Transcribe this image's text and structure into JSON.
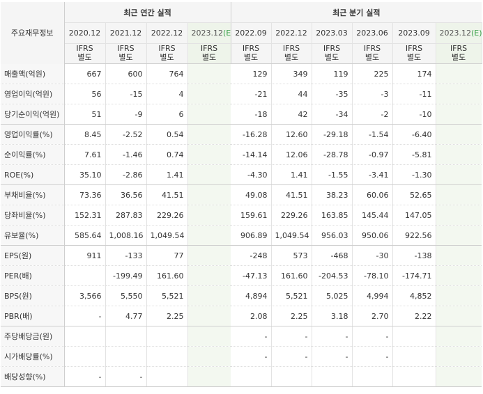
{
  "header": {
    "corner_label": "주요재무정보",
    "annual_title": "최근 연간 실적",
    "quarter_title": "최근 분기 실적",
    "annual_periods": [
      "2020.12",
      "2021.12",
      "2022.12",
      "2023.12"
    ],
    "quarter_periods": [
      "2022.09",
      "2022.12",
      "2023.03",
      "2023.06",
      "2023.09",
      "2023.12"
    ],
    "estimate_mark": "(E)",
    "ifrs_line1": "IFRS",
    "ifrs_line2": "별도"
  },
  "colors": {
    "negative": "#e8141c",
    "ifrs_text": "#f06a1e",
    "estimate_bg": "#eef4ea",
    "estimate_mark": "#3aa14a"
  },
  "rows": [
    {
      "label": "매출액(억원)",
      "values": [
        "667",
        "600",
        "764",
        "",
        "129",
        "349",
        "119",
        "225",
        "174",
        ""
      ]
    },
    {
      "label": "영업이익(억원)",
      "values": [
        "56",
        "-15",
        "4",
        "",
        "-21",
        "44",
        "-35",
        "-3",
        "-11",
        ""
      ]
    },
    {
      "label": "당기순이익(억원)",
      "values": [
        "51",
        "-9",
        "6",
        "",
        "-18",
        "42",
        "-34",
        "-2",
        "-10",
        ""
      ]
    },
    {
      "label": "영업이익률(%)",
      "values": [
        "8.45",
        "-2.52",
        "0.54",
        "",
        "-16.28",
        "12.60",
        "-29.18",
        "-1.54",
        "-6.40",
        ""
      ]
    },
    {
      "label": "순이익률(%)",
      "values": [
        "7.61",
        "-1.46",
        "0.74",
        "",
        "-14.14",
        "12.06",
        "-28.78",
        "-0.97",
        "-5.81",
        ""
      ]
    },
    {
      "label": "ROE(%)",
      "values": [
        "35.10",
        "-2.86",
        "1.41",
        "",
        "-4.30",
        "1.41",
        "-1.55",
        "-3.41",
        "-1.30",
        ""
      ]
    },
    {
      "label": "부채비율(%)",
      "values": [
        "73.36",
        "36.56",
        "41.51",
        "",
        "49.08",
        "41.51",
        "38.23",
        "60.06",
        "52.65",
        ""
      ]
    },
    {
      "label": "당좌비율(%)",
      "values": [
        "152.31",
        "287.83",
        "229.26",
        "",
        "159.61",
        "229.26",
        "163.85",
        "145.44",
        "147.05",
        ""
      ]
    },
    {
      "label": "유보율(%)",
      "values": [
        "585.64",
        "1,008.16",
        "1,049.54",
        "",
        "906.89",
        "1,049.54",
        "956.03",
        "950.06",
        "922.56",
        ""
      ]
    },
    {
      "label": "EPS(원)",
      "values": [
        "911",
        "-133",
        "77",
        "",
        "-248",
        "573",
        "-468",
        "-30",
        "-138",
        ""
      ]
    },
    {
      "label": "PER(배)",
      "values": [
        "",
        "-199.49",
        "161.60",
        "",
        "-47.13",
        "161.60",
        "-204.53",
        "-78.10",
        "-174.71",
        ""
      ]
    },
    {
      "label": "BPS(원)",
      "values": [
        "3,566",
        "5,550",
        "5,521",
        "",
        "4,894",
        "5,521",
        "5,025",
        "4,994",
        "4,852",
        ""
      ]
    },
    {
      "label": "PBR(배)",
      "values": [
        "-",
        "4.77",
        "2.25",
        "",
        "2.08",
        "2.25",
        "3.18",
        "2.70",
        "2.22",
        ""
      ]
    },
    {
      "label": "주당배당금(원)",
      "values": [
        "",
        "",
        "",
        "",
        "-",
        "-",
        "-",
        "-",
        "",
        ""
      ]
    },
    {
      "label": "시가배당률(%)",
      "values": [
        "",
        "",
        "",
        "",
        "-",
        "-",
        "-",
        "-",
        "",
        ""
      ]
    },
    {
      "label": "배당성향(%)",
      "values": [
        "-",
        "-",
        "",
        "",
        "",
        "",
        "",
        "",
        "",
        ""
      ]
    }
  ]
}
